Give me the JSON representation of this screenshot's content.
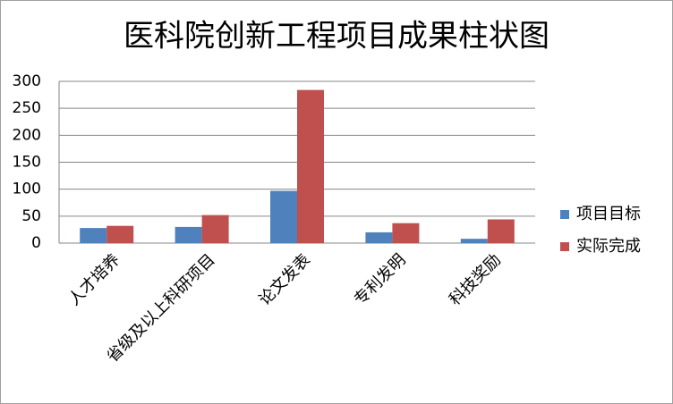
{
  "chart_data": {
    "type": "bar",
    "title": "医科院创新工程项目成果柱状图",
    "categories": [
      "人才培养",
      "省级及以上科研项目",
      "论文发表",
      "专利发明",
      "科技奖励"
    ],
    "series": [
      {
        "name": "项目目标",
        "color": "#4f81bd",
        "values": [
          28,
          30,
          97,
          20,
          8
        ]
      },
      {
        "name": "实际完成",
        "color": "#c0504d",
        "values": [
          32,
          52,
          284,
          37,
          44
        ]
      }
    ],
    "ylim": [
      0,
      300
    ],
    "yticks": [
      0,
      50,
      100,
      150,
      200,
      250,
      300
    ],
    "grid": true,
    "legend": "right"
  }
}
